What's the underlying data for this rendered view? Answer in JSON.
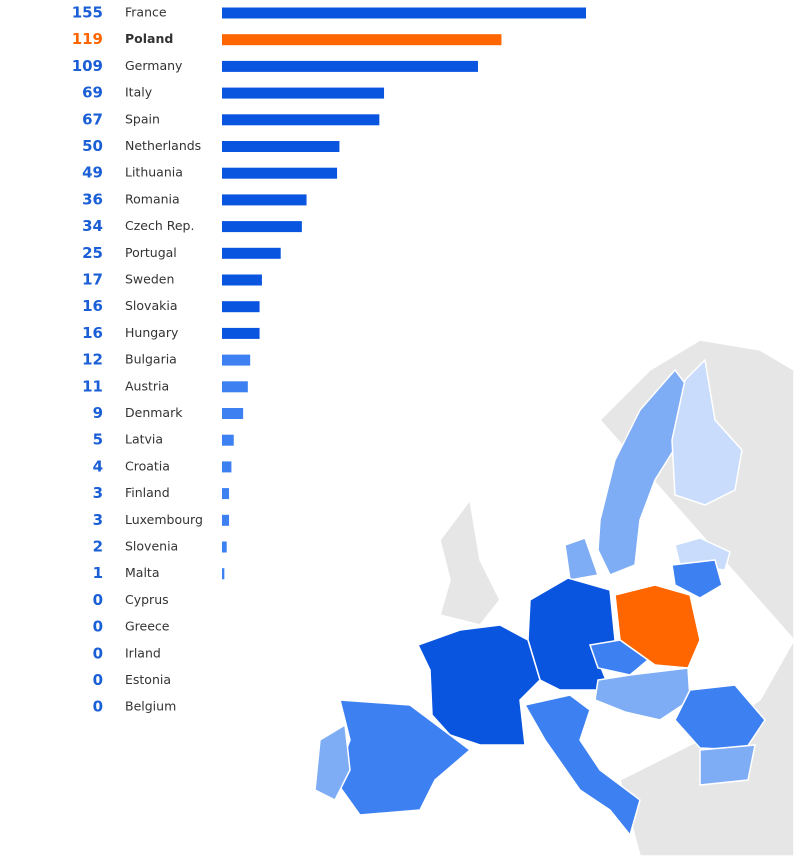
{
  "chart_data": {
    "type": "bar",
    "categories": [
      "France",
      "Poland",
      "Germany",
      "Italy",
      "Spain",
      "Netherlands",
      "Lithuania",
      "Romania",
      "Czech Rep.",
      "Portugal",
      "Sweden",
      "Slovakia",
      "Hungary",
      "Bulgaria",
      "Austria",
      "Denmark",
      "Latvia",
      "Croatia",
      "Finland",
      "Luxembourg",
      "Slovenia",
      "Malta",
      "Cyprus",
      "Greece",
      "Irland",
      "Estonia",
      "Belgium"
    ],
    "values": [
      155,
      119,
      109,
      69,
      67,
      50,
      49,
      36,
      34,
      25,
      17,
      16,
      16,
      12,
      11,
      9,
      5,
      4,
      3,
      3,
      2,
      1,
      0,
      0,
      0,
      0,
      0
    ],
    "colors": [
      "#0a55e0",
      "#ff6600",
      "#0a55e0",
      "#0a55e0",
      "#0a55e0",
      "#0a55e0",
      "#0a55e0",
      "#0a55e0",
      "#0a55e0",
      "#0a55e0",
      "#0a55e0",
      "#0a55e0",
      "#0a55e0",
      "#3d80f2",
      "#3d80f2",
      "#3d80f2",
      "#3d80f2",
      "#3d80f2",
      "#3d80f2",
      "#3d80f2",
      "#3d80f2",
      "#3d80f2",
      "#3d80f2",
      "#3d80f2",
      "#3d80f2",
      "#3d80f2",
      "#3d80f2"
    ],
    "label_colors": [
      "#1a5fd6",
      "#ff6600",
      "#1a5fd6",
      "#1a5fd6",
      "#1a5fd6",
      "#1a5fd6",
      "#1a5fd6",
      "#1a5fd6",
      "#1a5fd6",
      "#1a5fd6",
      "#1a5fd6",
      "#1a5fd6",
      "#1a5fd6",
      "#1a5fd6",
      "#1a5fd6",
      "#1a5fd6",
      "#1a5fd6",
      "#1a5fd6",
      "#1a5fd6",
      "#1a5fd6",
      "#1a5fd6",
      "#1a5fd6",
      "#1a5fd6",
      "#1a5fd6",
      "#1a5fd6",
      "#1a5fd6",
      "#1a5fd6"
    ],
    "highlight": "Poland"
  }
}
